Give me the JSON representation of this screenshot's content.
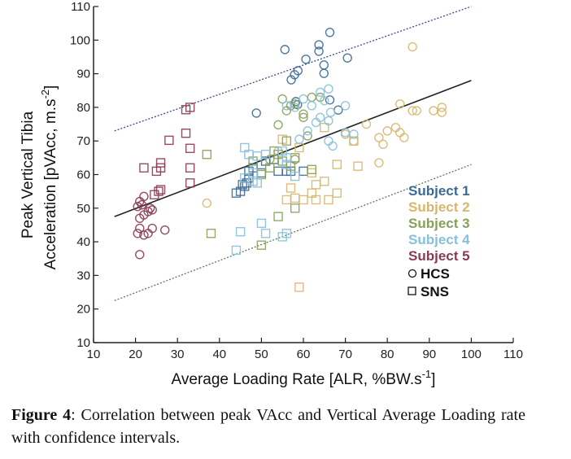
{
  "chart_data": {
    "type": "scatter",
    "xlabel": {
      "text": "Average Loading Rate [ALR, %BW.s",
      "sup": "-1",
      "end": "]"
    },
    "ylabel": {
      "line1": "Peak Vertical Tibia",
      "line2": "Acceleration [pVAcc, m.s",
      "sup": "-2",
      "end": "]"
    },
    "xlim": [
      10,
      110
    ],
    "ylim": [
      10,
      110
    ],
    "xticks": [
      10,
      20,
      30,
      40,
      50,
      60,
      70,
      80,
      90,
      100,
      110
    ],
    "yticks": [
      10,
      20,
      30,
      40,
      50,
      60,
      70,
      80,
      90,
      100,
      110
    ],
    "grid": false,
    "legend_position": "right",
    "legend": {
      "subjects": [
        "Subject 1",
        "Subject 2",
        "Subject 3",
        "Subject 4",
        "Subject 5"
      ],
      "markers": [
        {
          "shape": "circle",
          "label": "HCS"
        },
        {
          "shape": "square",
          "label": "SNS"
        }
      ]
    },
    "colors": [
      "#3b6a97",
      "#d8b66a",
      "#88a05a",
      "#86c0dc",
      "#8a3a55"
    ],
    "lines": {
      "regression": [
        [
          15,
          47.5
        ],
        [
          100,
          88
        ]
      ],
      "upper_ci": [
        [
          15,
          73
        ],
        [
          100,
          110
        ]
      ],
      "lower_ci": [
        [
          15,
          22.5
        ],
        [
          100,
          63
        ]
      ]
    },
    "series": [
      {
        "name": "Subject 1",
        "HCS": [
          [
            55.6,
            97.2
          ],
          [
            66.3,
            102.3
          ],
          [
            63.7,
            98.6
          ],
          [
            63.7,
            96.7
          ],
          [
            70.5,
            94.7
          ],
          [
            60.6,
            94.3
          ],
          [
            64.9,
            92.6
          ],
          [
            64.9,
            90.1
          ],
          [
            58.7,
            90.9
          ],
          [
            57.9,
            89.7
          ],
          [
            57.1,
            88.2
          ],
          [
            48.8,
            78.3
          ],
          [
            58.2,
            81.7
          ],
          [
            68.3,
            79.2
          ],
          [
            66.3,
            82.2
          ],
          [
            58.6,
            80.8
          ]
        ],
        "SNS": [
          [
            44,
            54.5
          ],
          [
            45,
            55
          ],
          [
            46,
            56.5
          ],
          [
            46.5,
            57.5
          ],
          [
            47,
            59
          ],
          [
            47,
            61
          ],
          [
            48,
            62
          ],
          [
            51,
            64
          ],
          [
            53,
            64.5
          ],
          [
            56,
            61
          ],
          [
            57,
            61
          ],
          [
            54,
            61
          ],
          [
            60,
            61
          ],
          [
            50,
            60.5
          ],
          [
            45.5,
            57
          ]
        ]
      },
      {
        "name": "Subject 2",
        "HCS": [
          [
            86,
            98
          ],
          [
            83,
            81
          ],
          [
            86,
            79
          ],
          [
            87,
            79
          ],
          [
            91,
            79
          ],
          [
            93,
            80
          ],
          [
            93,
            78.5
          ],
          [
            80,
            73
          ],
          [
            82,
            74
          ],
          [
            83,
            72.5
          ],
          [
            84,
            71
          ],
          [
            78,
            71
          ],
          [
            79,
            69
          ],
          [
            75,
            75
          ],
          [
            70,
            72
          ],
          [
            72,
            70
          ],
          [
            78,
            63.5
          ],
          [
            37,
            51.5
          ],
          [
            54,
            67
          ]
        ],
        "SNS": [
          [
            59,
            26.5
          ],
          [
            65,
            74
          ],
          [
            72,
            70
          ],
          [
            68,
            63
          ],
          [
            73,
            62.5
          ],
          [
            68,
            54.5
          ],
          [
            62,
            54.5
          ],
          [
            58,
            53
          ],
          [
            60,
            52.5
          ],
          [
            63,
            52.5
          ],
          [
            66,
            52.5
          ],
          [
            56,
            52.5
          ],
          [
            62,
            60.5
          ],
          [
            65,
            58
          ],
          [
            57,
            56
          ],
          [
            55,
            70.5
          ],
          [
            59,
            68
          ],
          [
            63,
            57
          ]
        ]
      },
      {
        "name": "Subject 3",
        "HCS": [
          [
            55,
            82.5
          ],
          [
            57,
            80.5
          ],
          [
            56,
            79
          ],
          [
            54,
            74.8
          ],
          [
            58,
            81
          ],
          [
            60,
            77
          ],
          [
            62,
            83
          ],
          [
            60,
            78
          ],
          [
            64,
            83
          ],
          [
            52,
            64.5
          ],
          [
            58,
            64.5
          ],
          [
            61,
            71.5
          ]
        ],
        "SNS": [
          [
            37,
            66
          ],
          [
            38,
            42.5
          ],
          [
            54,
            47.5
          ],
          [
            58,
            50
          ],
          [
            50,
            39
          ],
          [
            54,
            66
          ],
          [
            58,
            65
          ],
          [
            57,
            62.5
          ],
          [
            52,
            62
          ],
          [
            50,
            60
          ],
          [
            62,
            61.5
          ],
          [
            56,
            70
          ],
          [
            48,
            64
          ],
          [
            55,
            64
          ],
          [
            53,
            67
          ]
        ]
      },
      {
        "name": "Subject 4",
        "HCS": [
          [
            60,
            82.5
          ],
          [
            64,
            84.5
          ],
          [
            66,
            85.5
          ],
          [
            65,
            82
          ],
          [
            58,
            80
          ],
          [
            62,
            80.5
          ],
          [
            64,
            77
          ],
          [
            66.5,
            78.5
          ],
          [
            70,
            80.5
          ],
          [
            63,
            75.5
          ],
          [
            66,
            76
          ],
          [
            70,
            72.5
          ],
          [
            72,
            72
          ],
          [
            66,
            70
          ],
          [
            67,
            68.5
          ],
          [
            56,
            80.5
          ],
          [
            59,
            70.5
          ],
          [
            61,
            73
          ]
        ],
        "SNS": [
          [
            46,
            68
          ],
          [
            47,
            66
          ],
          [
            49,
            65.5
          ],
          [
            51,
            66
          ],
          [
            55,
            67
          ],
          [
            56,
            65
          ],
          [
            45,
            43
          ],
          [
            50,
            45.5
          ],
          [
            51,
            42.5
          ],
          [
            55,
            41.5
          ],
          [
            56,
            42.5
          ],
          [
            44,
            37.5
          ],
          [
            58,
            59.5
          ],
          [
            46,
            59
          ],
          [
            48,
            58
          ],
          [
            49,
            57.5
          ],
          [
            48,
            60.5
          ],
          [
            56,
            63
          ]
        ]
      },
      {
        "name": "Subject 5",
        "HCS": [
          [
            20.5,
            50.5
          ],
          [
            21,
            52
          ],
          [
            22,
            53.5
          ],
          [
            21.5,
            51
          ],
          [
            23.5,
            50
          ],
          [
            24,
            49.5
          ],
          [
            21,
            47
          ],
          [
            22,
            48
          ],
          [
            21,
            44
          ],
          [
            22,
            42
          ],
          [
            23,
            42.5
          ],
          [
            24,
            44
          ],
          [
            27,
            43.5
          ],
          [
            21,
            36.2
          ],
          [
            20.5,
            42.5
          ],
          [
            23,
            49
          ]
        ],
        "SNS": [
          [
            32,
            79.3
          ],
          [
            33,
            80
          ],
          [
            28,
            70.2
          ],
          [
            32,
            72.3
          ],
          [
            33,
            67.8
          ],
          [
            33,
            62
          ],
          [
            22,
            62
          ],
          [
            25,
            61
          ],
          [
            26,
            62
          ],
          [
            26,
            63.5
          ],
          [
            33,
            57.5
          ],
          [
            24.5,
            54
          ],
          [
            25.5,
            55
          ],
          [
            26,
            55.5
          ]
        ]
      }
    ]
  },
  "caption": {
    "label": "Figure 4",
    "text": ": Correlation between peak VAcc and Vertical Average Loading rate with confidence intervals."
  }
}
